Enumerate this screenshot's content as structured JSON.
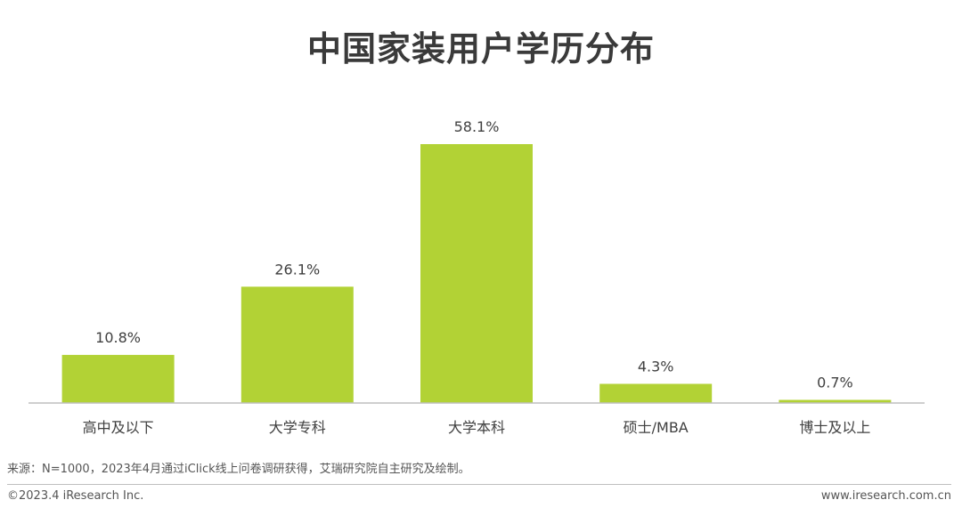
{
  "title": "中国家装用户学历分布",
  "chart_data": {
    "type": "bar",
    "categories": [
      "高中及以下",
      "大学专科",
      "大学本科",
      "硕士/MBA",
      "博士及以上"
    ],
    "values": [
      10.8,
      26.1,
      58.1,
      4.3,
      0.7
    ],
    "value_labels": [
      "10.8%",
      "26.1%",
      "58.1%",
      "4.3%",
      "0.7%"
    ],
    "unit": "%",
    "bar_color": "#b2d235",
    "ylim": [
      0,
      58.1
    ],
    "grid": false,
    "legend": "none"
  },
  "source": "来源：N=1000，2023年4月通过iClick线上问卷调研获得，艾瑞研究院自主研究及绘制。",
  "copyright": "©2023.4 iResearch Inc.",
  "website": "www.iresearch.com.cn"
}
